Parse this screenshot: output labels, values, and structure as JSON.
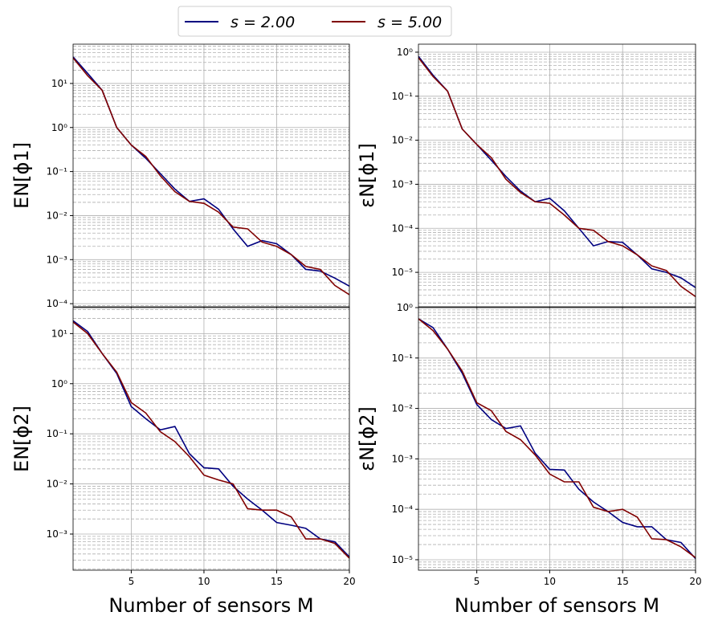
{
  "chart_data": [
    {
      "type": "line",
      "y_label": "EN[ϕ1]",
      "log_y": true,
      "grid": true,
      "x": [
        1,
        2,
        3,
        4,
        5,
        6,
        7,
        8,
        9,
        10,
        11,
        12,
        13,
        14,
        15,
        16,
        17,
        18,
        19,
        20
      ],
      "xlim": [
        1,
        20
      ],
      "xticks": [
        5,
        10,
        15,
        20
      ],
      "ylim": [
        8.5e-05,
        78
      ],
      "yticks": [
        {
          "value": 0.0001,
          "label": "10⁻⁴"
        },
        {
          "value": 0.001,
          "label": "10⁻³"
        },
        {
          "value": 0.01,
          "label": "10⁻²"
        },
        {
          "value": 0.1,
          "label": "10⁻¹"
        },
        {
          "value": 1,
          "label": "10⁰"
        },
        {
          "value": 10,
          "label": "10¹"
        }
      ],
      "series": [
        {
          "name": "s = 2.00",
          "color": "#000080",
          "values": [
            40,
            17,
            7,
            1.0,
            0.4,
            0.2,
            0.09,
            0.04,
            0.021,
            0.024,
            0.014,
            0.005,
            0.002,
            0.0027,
            0.0023,
            0.0013,
            0.0006,
            0.00055,
            0.00038,
            0.00025
          ]
        },
        {
          "name": "s = 5.00",
          "color": "#800000",
          "values": [
            38,
            15,
            7,
            1.0,
            0.4,
            0.22,
            0.08,
            0.035,
            0.021,
            0.019,
            0.012,
            0.0055,
            0.005,
            0.0025,
            0.002,
            0.0013,
            0.0007,
            0.0006,
            0.00026,
            0.00016
          ]
        }
      ]
    },
    {
      "type": "line",
      "y_label": "εN[ϕ1]",
      "log_y": true,
      "grid": true,
      "x": [
        1,
        2,
        3,
        4,
        5,
        6,
        7,
        8,
        9,
        10,
        11,
        12,
        13,
        14,
        15,
        16,
        17,
        18,
        19,
        20
      ],
      "xlim": [
        1,
        20
      ],
      "xticks": [
        5,
        10,
        15,
        20
      ],
      "ylim": [
        1.65e-06,
        1.52
      ],
      "yticks": [
        {
          "value": 1e-05,
          "label": "10⁻⁵"
        },
        {
          "value": 0.0001,
          "label": "10⁻⁴"
        },
        {
          "value": 0.001,
          "label": "10⁻³"
        },
        {
          "value": 0.01,
          "label": "10⁻²"
        },
        {
          "value": 0.1,
          "label": "10⁻¹"
        },
        {
          "value": 1,
          "label": "10⁰"
        }
      ],
      "series": [
        {
          "color": "#000080",
          "values": [
            0.8,
            0.3,
            0.13,
            0.018,
            0.008,
            0.0035,
            0.0015,
            0.0007,
            0.0004,
            0.00048,
            0.00025,
            0.0001,
            4e-05,
            5e-05,
            4.8e-05,
            2.5e-05,
            1.2e-05,
            1e-05,
            7.5e-06,
            4.5e-06
          ]
        },
        {
          "color": "#800000",
          "values": [
            0.75,
            0.28,
            0.13,
            0.018,
            0.008,
            0.004,
            0.0013,
            0.00065,
            0.0004,
            0.00037,
            0.0002,
            0.0001,
            9e-05,
            5e-05,
            4e-05,
            2.5e-05,
            1.4e-05,
            1.1e-05,
            4.8e-06,
            2.8e-06
          ]
        }
      ]
    },
    {
      "type": "line",
      "y_label": "EN[ϕ2]",
      "x_label": "Number of sensors M",
      "log_y": true,
      "grid": true,
      "x": [
        1,
        2,
        3,
        4,
        5,
        6,
        7,
        8,
        9,
        10,
        11,
        12,
        13,
        14,
        15,
        16,
        17,
        18,
        19,
        20
      ],
      "xlim": [
        1,
        20
      ],
      "xticks": [
        5,
        10,
        15,
        20
      ],
      "ylim": [
        0.00019,
        33
      ],
      "yticks": [
        {
          "value": 0.001,
          "label": "10⁻³"
        },
        {
          "value": 0.01,
          "label": "10⁻²"
        },
        {
          "value": 0.1,
          "label": "10⁻¹"
        },
        {
          "value": 1,
          "label": "10⁰"
        },
        {
          "value": 10,
          "label": "10¹"
        }
      ],
      "series": [
        {
          "color": "#000080",
          "values": [
            18,
            11,
            4,
            1.6,
            0.35,
            0.2,
            0.12,
            0.14,
            0.04,
            0.021,
            0.02,
            0.009,
            0.005,
            0.003,
            0.0017,
            0.0015,
            0.0013,
            0.0008,
            0.0007,
            0.00035
          ]
        },
        {
          "color": "#800000",
          "values": [
            17,
            10,
            4,
            1.7,
            0.42,
            0.26,
            0.11,
            0.07,
            0.035,
            0.015,
            0.012,
            0.01,
            0.0032,
            0.003,
            0.003,
            0.0022,
            0.0008,
            0.0008,
            0.00065,
            0.00033
          ]
        }
      ]
    },
    {
      "type": "line",
      "y_label": "εN[ϕ2]",
      "x_label": "Number of sensors M",
      "log_y": true,
      "grid": true,
      "x": [
        1,
        2,
        3,
        4,
        5,
        6,
        7,
        8,
        9,
        10,
        11,
        12,
        13,
        14,
        15,
        16,
        17,
        18,
        19,
        20
      ],
      "xlim": [
        1,
        20
      ],
      "xticks": [
        5,
        10,
        15,
        20
      ],
      "ylim": [
        6.2e-06,
        1.0
      ],
      "yticks": [
        {
          "value": 1e-05,
          "label": "10⁻⁵"
        },
        {
          "value": 0.0001,
          "label": "10⁻⁴"
        },
        {
          "value": 0.001,
          "label": "10⁻³"
        },
        {
          "value": 0.01,
          "label": "10⁻²"
        },
        {
          "value": 0.1,
          "label": "10⁻¹"
        },
        {
          "value": 1,
          "label": "10⁰"
        }
      ],
      "series": [
        {
          "color": "#000080",
          "values": [
            0.6,
            0.4,
            0.15,
            0.05,
            0.012,
            0.006,
            0.004,
            0.0045,
            0.0013,
            0.00062,
            0.0006,
            0.00025,
            0.00014,
            9e-05,
            5.5e-05,
            4.5e-05,
            4.5e-05,
            2.5e-05,
            2.2e-05,
            1.05e-05
          ]
        },
        {
          "color": "#800000",
          "values": [
            0.6,
            0.35,
            0.15,
            0.055,
            0.013,
            0.009,
            0.0035,
            0.0024,
            0.0012,
            0.0005,
            0.00035,
            0.00035,
            0.00011,
            9e-05,
            0.0001,
            7e-05,
            2.6e-05,
            2.5e-05,
            1.8e-05,
            1.1e-05
          ]
        }
      ]
    }
  ]
}
